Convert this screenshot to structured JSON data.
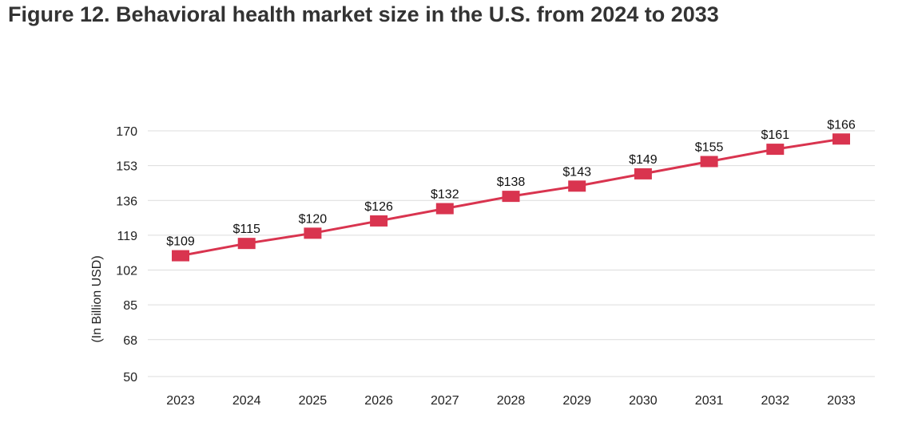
{
  "chart_data": {
    "type": "line",
    "title": "Figure 12. Behavioral health market size in the U.S. from 2024 to 2033",
    "xlabel": "",
    "ylabel": "(In Billion USD)",
    "categories": [
      "2023",
      "2024",
      "2025",
      "2026",
      "2027",
      "2028",
      "2029",
      "2030",
      "2031",
      "2032",
      "2033"
    ],
    "values": [
      109,
      115,
      120,
      126,
      132,
      138,
      143,
      149,
      155,
      161,
      166
    ],
    "data_labels": [
      "$109",
      "$115",
      "$120",
      "$126",
      "$132",
      "$138",
      "$143",
      "$149",
      "$155",
      "$161",
      "$166"
    ],
    "yticks": [
      50,
      68,
      85,
      102,
      119,
      136,
      153,
      170
    ],
    "ylim": [
      50,
      170
    ],
    "grid": true,
    "series_color": "#d9344f"
  }
}
